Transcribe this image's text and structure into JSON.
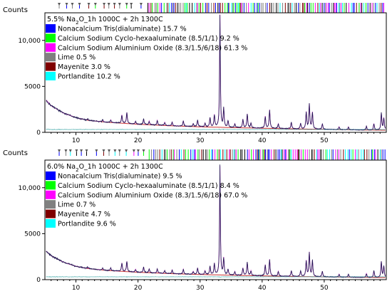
{
  "chart_data": [
    {
      "type": "line",
      "title_parts": [
        {
          "t": "5.5% Na"
        },
        {
          "t": "2",
          "sub": true
        },
        {
          "t": "O_1h  1000C + 2h 1300C"
        }
      ],
      "ylabel": "Counts",
      "xlabel": "",
      "xlim": [
        5,
        60
      ],
      "ylim": [
        0,
        13000
      ],
      "xticks": [
        10,
        20,
        30,
        40,
        50
      ],
      "yticks": [
        {
          "v": 0,
          "label": "0"
        },
        {
          "v": 5000,
          "label": "5000"
        },
        {
          "v": 10000,
          "label": "10,000"
        }
      ],
      "legend_placement": "top-left",
      "legend": [
        {
          "text": "Nonacalcium Tris(dialuminate) 15.7 %",
          "color": "#0000ff"
        },
        {
          "text": "Calcium Sodium Cyclo-hexaaluminate (8.5/1/1) 9.2 %",
          "color": "#00ff00"
        },
        {
          "text": "Calcium Sodium Aluminium Oxide (8.3/1.5/6/18) 61.3 %",
          "color": "#ff00ff"
        },
        {
          "text": "Lime 0.5 %",
          "color": "#808080"
        },
        {
          "text": "Mayenite 3.0 %",
          "color": "#800000"
        },
        {
          "text": "Portlandite 10.2 %",
          "color": "#00ffff"
        }
      ],
      "series": [
        {
          "role": "observed",
          "color": "#1a1a4d"
        },
        {
          "role": "calculated",
          "color": "#d040d0"
        }
      ],
      "background": [
        [
          5.2,
          3500
        ],
        [
          6,
          2900
        ],
        [
          8,
          2100
        ],
        [
          10,
          1600
        ],
        [
          12,
          1300
        ],
        [
          15,
          1100
        ],
        [
          20,
          880
        ],
        [
          25,
          720
        ],
        [
          30,
          600
        ],
        [
          35,
          520
        ],
        [
          40,
          450
        ],
        [
          45,
          380
        ],
        [
          50,
          320
        ],
        [
          55,
          270
        ],
        [
          59.8,
          230
        ]
      ],
      "peaks": [
        [
          11.9,
          150
        ],
        [
          14.3,
          220
        ],
        [
          15.6,
          280
        ],
        [
          17.4,
          900
        ],
        [
          18.2,
          1200
        ],
        [
          19.6,
          300
        ],
        [
          20.9,
          600
        ],
        [
          21.8,
          400
        ],
        [
          23.1,
          500
        ],
        [
          24.3,
          350
        ],
        [
          25.5,
          400
        ],
        [
          27.3,
          600
        ],
        [
          28.9,
          300
        ],
        [
          29.6,
          700
        ],
        [
          30.8,
          400
        ],
        [
          31.6,
          1000
        ],
        [
          32.3,
          1300
        ],
        [
          33.2,
          12200
        ],
        [
          33.8,
          2000
        ],
        [
          34.5,
          700
        ],
        [
          35.6,
          400
        ],
        [
          36.9,
          900
        ],
        [
          37.6,
          1500
        ],
        [
          38.2,
          500
        ],
        [
          40.5,
          1300
        ],
        [
          41.2,
          2000
        ],
        [
          42.6,
          500
        ],
        [
          44.7,
          700
        ],
        [
          46.2,
          600
        ],
        [
          47.1,
          1800
        ],
        [
          47.6,
          2700
        ],
        [
          48.1,
          1800
        ],
        [
          49.7,
          600
        ],
        [
          52.4,
          300
        ],
        [
          53.9,
          300
        ],
        [
          56.8,
          400
        ],
        [
          58.0,
          700
        ],
        [
          59.2,
          1800
        ],
        [
          59.6,
          1300
        ]
      ]
    },
    {
      "type": "line",
      "title_parts": [
        {
          "t": "6.0% Na"
        },
        {
          "t": "2",
          "sub": true
        },
        {
          "t": "O_1h  1000C + 2h 1300C"
        }
      ],
      "ylabel": "Counts",
      "xlabel": "",
      "xlim": [
        5,
        60
      ],
      "ylim": [
        0,
        13000
      ],
      "xticks": [
        10,
        20,
        30,
        40,
        50
      ],
      "yticks": [
        {
          "v": 0,
          "label": "0"
        },
        {
          "v": 5000,
          "label": "5000"
        },
        {
          "v": 10000,
          "label": "10,000"
        }
      ],
      "legend_placement": "top-left",
      "legend": [
        {
          "text": "Nonacalcium Tris(dialuminate) 9.5 %",
          "color": "#0000ff"
        },
        {
          "text": "Calcium Sodium Cyclo-hexaaluminate (8.5/1/1) 8.4 %",
          "color": "#00ff00"
        },
        {
          "text": "Calcium Sodium Aluminium Oxide (8.3/1.5/6/18) 67.0 %",
          "color": "#ff00ff"
        },
        {
          "text": "Lime 0.7 %",
          "color": "#808080"
        },
        {
          "text": "Mayenite 4.7 %",
          "color": "#800000"
        },
        {
          "text": "Portlandite 9.6 %",
          "color": "#00ffff"
        }
      ],
      "series": [
        {
          "role": "observed",
          "color": "#1a1a4d"
        },
        {
          "role": "calculated",
          "color": "#d040d0"
        }
      ],
      "background": [
        [
          5.2,
          3100
        ],
        [
          6,
          2600
        ],
        [
          8,
          1900
        ],
        [
          10,
          1450
        ],
        [
          12,
          1200
        ],
        [
          15,
          1000
        ],
        [
          20,
          800
        ],
        [
          25,
          660
        ],
        [
          30,
          560
        ],
        [
          35,
          480
        ],
        [
          40,
          410
        ],
        [
          45,
          350
        ],
        [
          50,
          300
        ],
        [
          55,
          260
        ],
        [
          59.8,
          220
        ]
      ],
      "peaks": [
        [
          11.9,
          150
        ],
        [
          14.3,
          200
        ],
        [
          15.6,
          300
        ],
        [
          17.4,
          900
        ],
        [
          18.2,
          1100
        ],
        [
          19.6,
          300
        ],
        [
          20.9,
          600
        ],
        [
          21.8,
          400
        ],
        [
          23.1,
          450
        ],
        [
          24.3,
          300
        ],
        [
          25.5,
          400
        ],
        [
          27.3,
          500
        ],
        [
          28.9,
          300
        ],
        [
          29.6,
          700
        ],
        [
          30.8,
          400
        ],
        [
          31.6,
          900
        ],
        [
          32.3,
          1200
        ],
        [
          33.2,
          11800
        ],
        [
          33.8,
          1800
        ],
        [
          34.5,
          600
        ],
        [
          35.6,
          400
        ],
        [
          36.9,
          800
        ],
        [
          37.6,
          1400
        ],
        [
          38.2,
          500
        ],
        [
          40.5,
          1200
        ],
        [
          41.2,
          1800
        ],
        [
          42.6,
          500
        ],
        [
          44.7,
          600
        ],
        [
          46.2,
          600
        ],
        [
          47.1,
          1700
        ],
        [
          47.6,
          2600
        ],
        [
          48.1,
          1700
        ],
        [
          49.7,
          600
        ],
        [
          52.4,
          300
        ],
        [
          53.9,
          300
        ],
        [
          56.8,
          400
        ],
        [
          58.0,
          700
        ],
        [
          59.2,
          1700
        ],
        [
          59.6,
          1200
        ]
      ]
    }
  ]
}
